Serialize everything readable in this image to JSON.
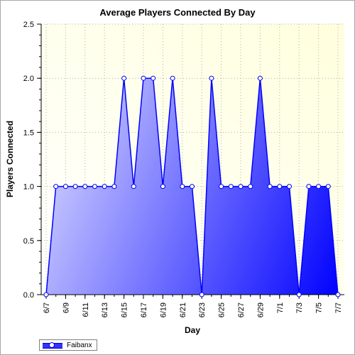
{
  "colors": {
    "plot_background_top": "#ffffdd",
    "plot_background_bottom": "#ffffff",
    "area_fill_light": "#c8c8ff",
    "area_fill_dark": "#0000ff",
    "line": "#0000ff",
    "marker_fill": "#ffffff",
    "grid": "#b0b0b0"
  },
  "chart_data": {
    "type": "area",
    "title": "Average Players Connected By Day",
    "xlabel": "Day",
    "ylabel": "Players Connected",
    "x": [
      "6/7",
      "6/8",
      "6/9",
      "6/10",
      "6/11",
      "6/12",
      "6/13",
      "6/14",
      "6/15",
      "6/16",
      "6/17",
      "6/18",
      "6/19",
      "6/20",
      "6/21",
      "6/22",
      "6/23",
      "6/24",
      "6/25",
      "6/26",
      "6/27",
      "6/28",
      "6/29",
      "6/30",
      "7/1",
      "7/2",
      "7/3",
      "7/4",
      "7/5",
      "7/6",
      "7/7"
    ],
    "x_tick_labels": [
      "6/7",
      "6/9",
      "6/11",
      "6/13",
      "6/15",
      "6/17",
      "6/19",
      "6/21",
      "6/23",
      "6/25",
      "6/27",
      "6/29",
      "7/1",
      "7/3",
      "7/5",
      "7/7"
    ],
    "y_tick_labels": [
      "0.0",
      "0.5",
      "1.0",
      "1.5",
      "2.0",
      "2.5"
    ],
    "ylim": [
      0,
      2.5
    ],
    "grid": true,
    "legend_position": "bottom-left",
    "series": [
      {
        "name": "Faibanx",
        "values": [
          0,
          1,
          1,
          1,
          1,
          1,
          1,
          1,
          2,
          1,
          2,
          2,
          1,
          2,
          1,
          1,
          0,
          2,
          1,
          1,
          1,
          1,
          2,
          1,
          1,
          1,
          0,
          1,
          1,
          1,
          0
        ]
      }
    ]
  }
}
